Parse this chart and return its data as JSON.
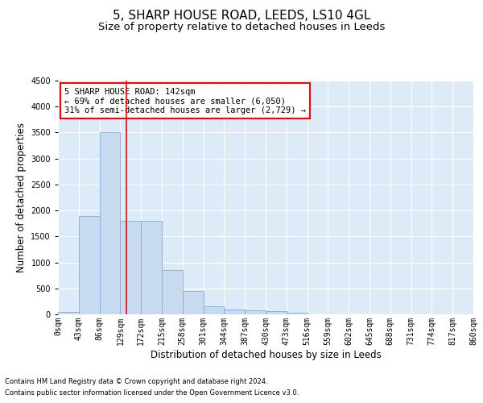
{
  "title": "5, SHARP HOUSE ROAD, LEEDS, LS10 4GL",
  "subtitle": "Size of property relative to detached houses in Leeds",
  "xlabel": "Distribution of detached houses by size in Leeds",
  "ylabel": "Number of detached properties",
  "bar_color": "#c8daf0",
  "bar_edge_color": "#7bafd4",
  "background_color": "#ddeaf8",
  "grid_color": "#ffffff",
  "vline_x": 142,
  "vline_color": "red",
  "bin_edges": [
    0,
    43,
    86,
    129,
    172,
    215,
    258,
    301,
    344,
    387,
    430,
    473,
    516,
    559,
    602,
    645,
    688,
    731,
    774,
    817,
    860
  ],
  "bar_heights": [
    40,
    1900,
    3500,
    1800,
    1800,
    850,
    450,
    160,
    100,
    80,
    60,
    30,
    0,
    0,
    0,
    0,
    0,
    0,
    0,
    0
  ],
  "ylim": [
    0,
    4500
  ],
  "yticks": [
    0,
    500,
    1000,
    1500,
    2000,
    2500,
    3000,
    3500,
    4000,
    4500
  ],
  "annotation_text": "5 SHARP HOUSE ROAD: 142sqm\n← 69% of detached houses are smaller (6,050)\n31% of semi-detached houses are larger (2,729) →",
  "annotation_box_color": "white",
  "annotation_box_edge_color": "red",
  "footer_line1": "Contains HM Land Registry data © Crown copyright and database right 2024.",
  "footer_line2": "Contains public sector information licensed under the Open Government Licence v3.0.",
  "title_fontsize": 11,
  "subtitle_fontsize": 9.5,
  "tick_label_fontsize": 7,
  "ylabel_fontsize": 8.5,
  "xlabel_fontsize": 8.5,
  "annotation_fontsize": 7.5,
  "footer_fontsize": 6
}
